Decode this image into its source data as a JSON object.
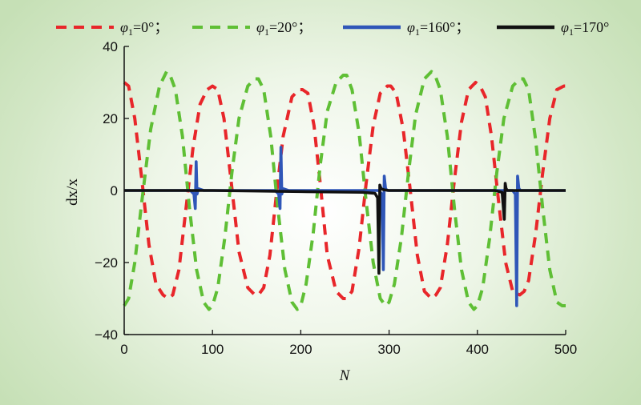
{
  "chart_data": {
    "type": "line",
    "title": "",
    "xlabel": "N",
    "ylabel": "dx/x",
    "xlim": [
      0,
      500
    ],
    "ylim": [
      -40,
      40
    ],
    "xticks": [
      0,
      100,
      200,
      300,
      400,
      500
    ],
    "yticks": [
      -40,
      -20,
      0,
      20,
      40
    ],
    "xtick_labels": [
      "0",
      "100",
      "200",
      "300",
      "400",
      "500"
    ],
    "ytick_labels": [
      "−40",
      "−20",
      "0",
      "20",
      "40"
    ],
    "grid": false,
    "legend_position": "top",
    "legend_separator": "；",
    "series": [
      {
        "name": "φ1=0°",
        "legend_symbol": "φ",
        "legend_subscript": "1",
        "legend_value": "=0°",
        "color": "#e8262a",
        "dash": "dashed",
        "x": [
          0,
          5,
          12,
          20,
          28,
          36,
          44,
          50,
          55,
          62,
          70,
          78,
          86,
          94,
          100,
          106,
          113,
          120,
          130,
          140,
          148,
          152,
          158,
          165,
          172,
          180,
          190,
          198,
          202,
          208,
          215,
          222,
          230,
          240,
          248,
          252,
          258,
          266,
          274,
          282,
          290,
          298,
          302,
          308,
          316,
          324,
          332,
          340,
          348,
          353,
          358,
          366,
          374,
          382,
          390,
          398,
          403,
          409,
          416,
          424,
          432,
          440,
          448,
          453,
          458,
          466,
          474,
          482,
          490,
          498,
          500
        ],
        "y": [
          30,
          29,
          20,
          3,
          -15,
          -26,
          -29,
          -30,
          -29,
          -22,
          -5,
          12,
          24,
          28,
          29,
          28,
          20,
          5,
          -17,
          -27,
          -29,
          -29,
          -27,
          -18,
          -2,
          15,
          26,
          28,
          28,
          27,
          18,
          2,
          -18,
          -28,
          -30,
          -30,
          -28,
          -16,
          2,
          18,
          27,
          29,
          29,
          27,
          17,
          0,
          -18,
          -28,
          -30,
          -29,
          -27,
          -15,
          3,
          19,
          28,
          30,
          29,
          26,
          15,
          -3,
          -20,
          -28,
          -29,
          -28,
          -25,
          -12,
          5,
          20,
          28,
          29,
          29
        ]
      },
      {
        "name": "φ1=20°",
        "legend_symbol": "φ",
        "legend_subscript": "1",
        "legend_value": "=20°",
        "color": "#5fbf35",
        "dash": "dashed",
        "x": [
          0,
          5,
          12,
          20,
          30,
          40,
          48,
          52,
          58,
          66,
          74,
          82,
          90,
          96,
          100,
          106,
          114,
          122,
          130,
          140,
          148,
          152,
          158,
          166,
          174,
          182,
          190,
          196,
          200,
          206,
          214,
          222,
          230,
          240,
          248,
          252,
          258,
          266,
          274,
          282,
          290,
          296,
          300,
          306,
          314,
          322,
          330,
          340,
          348,
          352,
          358,
          366,
          374,
          382,
          390,
          396,
          400,
          406,
          414,
          422,
          430,
          440,
          448,
          452,
          458,
          466,
          474,
          482,
          490,
          496,
          500
        ],
        "y": [
          -32,
          -30,
          -20,
          -3,
          17,
          29,
          33,
          32,
          28,
          15,
          -5,
          -22,
          -31,
          -33,
          -32,
          -27,
          -13,
          5,
          20,
          29,
          31,
          31,
          28,
          15,
          -5,
          -22,
          -31,
          -33,
          -32,
          -26,
          -12,
          7,
          22,
          30,
          32,
          32,
          28,
          16,
          -3,
          -20,
          -30,
          -32,
          -31,
          -26,
          -13,
          5,
          21,
          31,
          33,
          32,
          28,
          15,
          -5,
          -22,
          -31,
          -33,
          -32,
          -27,
          -13,
          5,
          20,
          29,
          31,
          31,
          28,
          14,
          -5,
          -22,
          -31,
          -32,
          -32
        ]
      },
      {
        "name": "φ1=160°",
        "legend_symbol": "φ",
        "legend_subscript": "1",
        "legend_value": "=160°",
        "color": "#2f56b8",
        "dash": "solid",
        "x": [
          0,
          60,
          75,
          79,
          80.5,
          81.5,
          82.5,
          84,
          90,
          120,
          160,
          171,
          175,
          176.5,
          177.5,
          178.5,
          180,
          186,
          230,
          280,
          288,
          292,
          293.5,
          294.5,
          296,
          298,
          310,
          380,
          430,
          440,
          443,
          444.5,
          445.5,
          447,
          449,
          456,
          500
        ],
        "y": [
          0,
          0,
          0,
          -1,
          -5,
          8,
          -1,
          0.5,
          0,
          0,
          0,
          0,
          -1,
          -5,
          12,
          -1,
          0.5,
          0,
          0,
          0,
          0,
          -1,
          -22,
          4,
          0.5,
          0,
          0,
          0,
          0,
          0,
          -1,
          -32,
          4,
          0.5,
          0,
          0,
          0
        ]
      },
      {
        "name": "φ1=170°",
        "legend_symbol": "φ",
        "legend_subscript": "1",
        "legend_value": "=170°",
        "color": "#111111",
        "dash": "solid",
        "x": [
          0,
          100,
          200,
          270,
          284,
          287,
          288.5,
          289.5,
          291,
          294,
          300,
          360,
          420,
          428,
          430.5,
          431.5,
          432.5,
          434,
          440,
          500
        ],
        "y": [
          0,
          0,
          -0.3,
          -0.5,
          -0.8,
          -2,
          -23,
          1.5,
          0.5,
          0.2,
          0,
          0,
          0,
          -0.5,
          -8,
          2,
          0.5,
          0,
          0,
          0
        ]
      }
    ]
  }
}
